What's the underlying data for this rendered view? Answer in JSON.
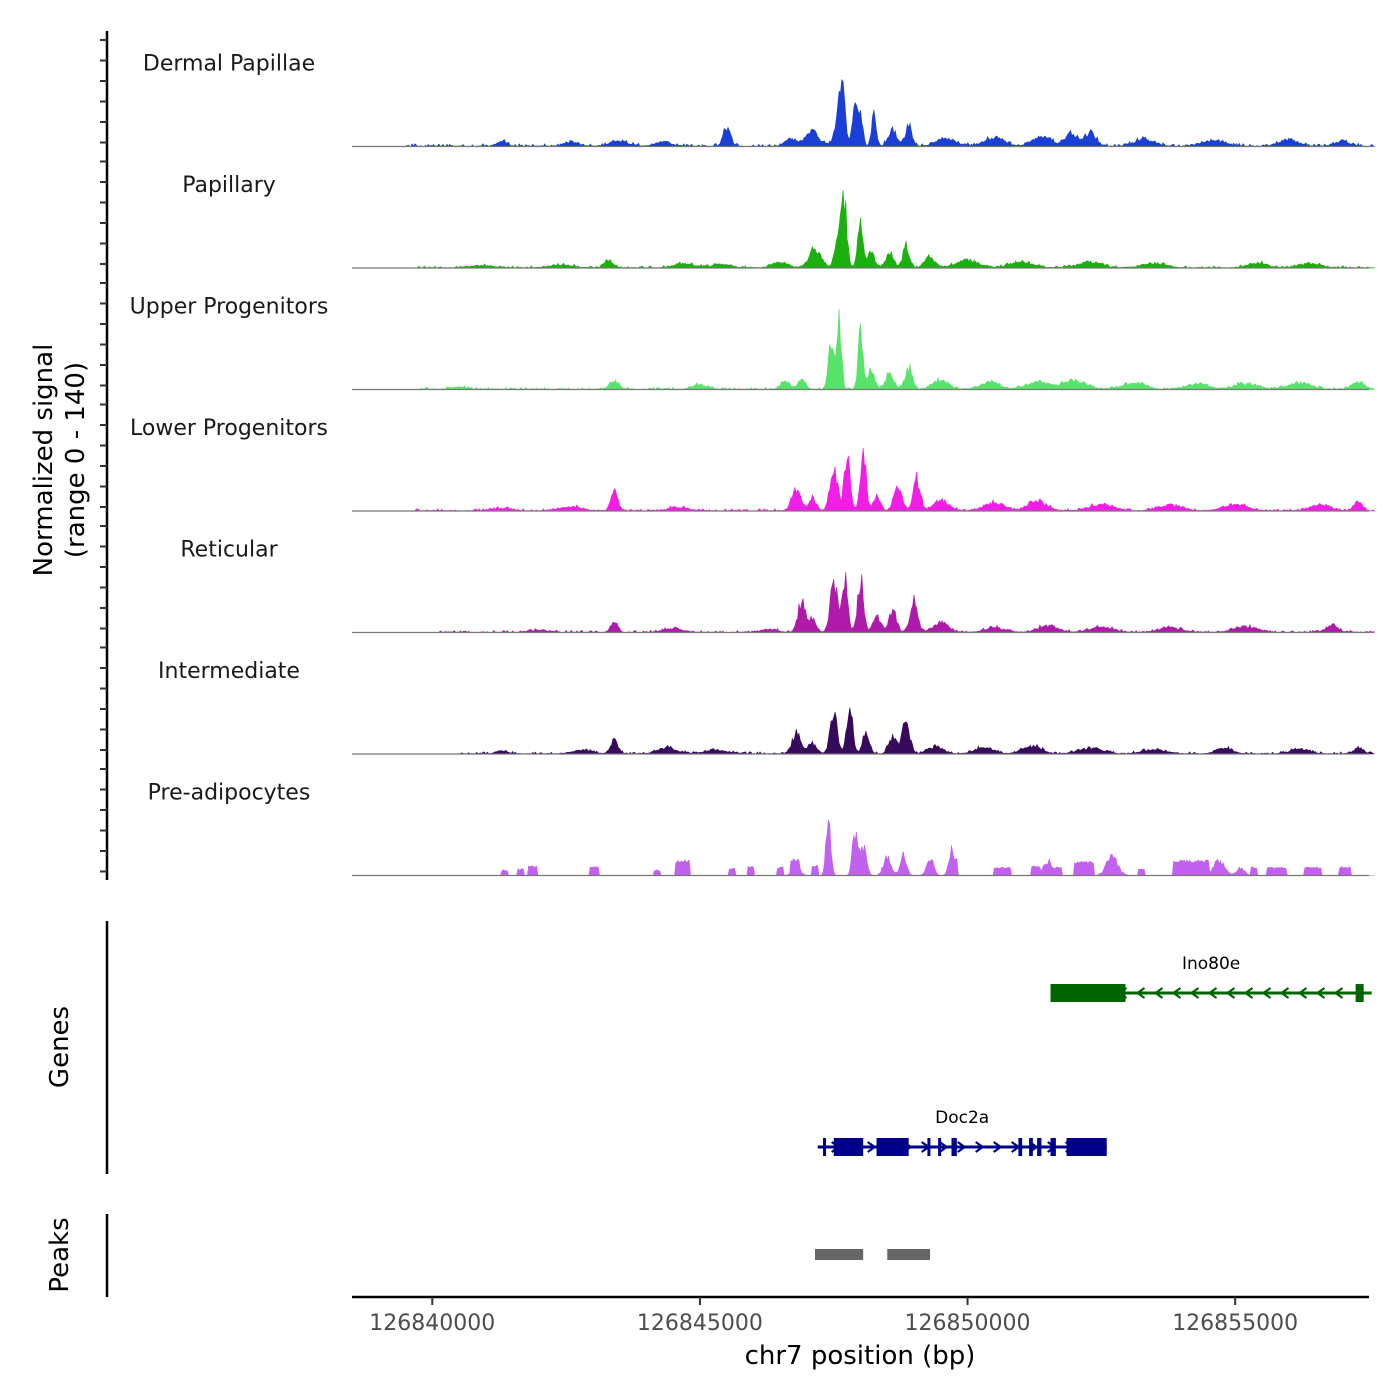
{
  "chart_data": {
    "type": "area",
    "title": "",
    "xlabel": "chr7 position (bp)",
    "ylabel_line1": "Normalized signal",
    "ylabel_line2": "(range 0 - 140)",
    "y_range": [
      0,
      140
    ],
    "xlim": [
      126838500,
      126857500
    ],
    "data_start": 126838500,
    "data_end": 126857600,
    "x_ticks": [
      126840000,
      126845000,
      126850000,
      126855000
    ],
    "x_tick_labels": [
      "126840000",
      "126845000",
      "126850000",
      "126855000"
    ],
    "tracks": [
      {
        "name": "Dermal Papillae",
        "color": "#1a3fd6",
        "baseline": 4,
        "noise_start": 126839500,
        "peaks": [
          [
            126841300,
            6,
            120
          ],
          [
            126842600,
            5,
            200
          ],
          [
            126843500,
            7,
            250
          ],
          [
            126844300,
            6,
            200
          ],
          [
            126845500,
            28,
            90
          ],
          [
            126846700,
            10,
            150
          ],
          [
            126847100,
            20,
            180
          ],
          [
            126847600,
            40,
            110
          ],
          [
            126847650,
            65,
            80
          ],
          [
            126847900,
            48,
            70
          ],
          [
            126848000,
            40,
            60
          ],
          [
            126848250,
            42,
            60
          ],
          [
            126848600,
            22,
            110
          ],
          [
            126848900,
            28,
            90
          ],
          [
            126849600,
            10,
            250
          ],
          [
            126850500,
            12,
            250
          ],
          [
            126851400,
            13,
            250
          ],
          [
            126851950,
            18,
            160
          ],
          [
            126852300,
            20,
            140
          ],
          [
            126853300,
            10,
            250
          ],
          [
            126854600,
            8,
            300
          ],
          [
            126856000,
            9,
            250
          ],
          [
            126857000,
            6,
            200
          ]
        ]
      },
      {
        "name": "Papillary",
        "color": "#1ab00d",
        "baseline": 3,
        "noise_start": 126839700,
        "peaks": [
          [
            126840900,
            3,
            300
          ],
          [
            126842400,
            4,
            300
          ],
          [
            126843300,
            10,
            110
          ],
          [
            126844700,
            6,
            250
          ],
          [
            126845400,
            5,
            250
          ],
          [
            126846500,
            8,
            200
          ],
          [
            126847150,
            25,
            160
          ],
          [
            126847600,
            55,
            90
          ],
          [
            126847700,
            78,
            70
          ],
          [
            126848000,
            60,
            70
          ],
          [
            126848200,
            22,
            90
          ],
          [
            126848550,
            20,
            100
          ],
          [
            126848850,
            32,
            80
          ],
          [
            126849300,
            15,
            130
          ],
          [
            126850000,
            10,
            300
          ],
          [
            126851000,
            8,
            300
          ],
          [
            126852300,
            8,
            300
          ],
          [
            126853500,
            6,
            300
          ],
          [
            126855400,
            7,
            250
          ],
          [
            126856400,
            5,
            300
          ]
        ]
      },
      {
        "name": "Upper Progenitors",
        "color": "#58e36a",
        "baseline": 3,
        "noise_start": 126839700,
        "peaks": [
          [
            126840500,
            3,
            200
          ],
          [
            126843400,
            11,
            120
          ],
          [
            126845000,
            6,
            200
          ],
          [
            126846600,
            10,
            120
          ],
          [
            126846900,
            12,
            100
          ],
          [
            126847450,
            70,
            70
          ],
          [
            126847600,
            100,
            60
          ],
          [
            126848000,
            85,
            60
          ],
          [
            126848200,
            25,
            90
          ],
          [
            126848550,
            25,
            100
          ],
          [
            126848900,
            30,
            90
          ],
          [
            126849500,
            12,
            200
          ],
          [
            126850400,
            10,
            250
          ],
          [
            126851300,
            10,
            300
          ],
          [
            126852000,
            12,
            300
          ],
          [
            126853100,
            8,
            300
          ],
          [
            126854300,
            7,
            300
          ],
          [
            126855200,
            8,
            300
          ],
          [
            126856200,
            8,
            300
          ],
          [
            126857300,
            9,
            160
          ]
        ]
      },
      {
        "name": "Lower Progenitors",
        "color": "#f21ee6",
        "baseline": 3,
        "noise_start": 126839700,
        "peaks": [
          [
            126841300,
            3,
            250
          ],
          [
            126842600,
            5,
            300
          ],
          [
            126843400,
            25,
            90
          ],
          [
            126844600,
            5,
            250
          ],
          [
            126846800,
            30,
            110
          ],
          [
            126847100,
            18,
            100
          ],
          [
            126847500,
            62,
            100
          ],
          [
            126847750,
            70,
            80
          ],
          [
            126848050,
            90,
            70
          ],
          [
            126848300,
            18,
            90
          ],
          [
            126848700,
            30,
            110
          ],
          [
            126849050,
            45,
            90
          ],
          [
            126849500,
            15,
            200
          ],
          [
            126850500,
            12,
            250
          ],
          [
            126851300,
            13,
            250
          ],
          [
            126852500,
            9,
            300
          ],
          [
            126853800,
            8,
            300
          ],
          [
            126855000,
            9,
            300
          ],
          [
            126856600,
            8,
            250
          ],
          [
            126857300,
            12,
            110
          ]
        ]
      },
      {
        "name": "Reticular",
        "color": "#b01aaa",
        "baseline": 3,
        "noise_start": 126840000,
        "peaks": [
          [
            126842000,
            3,
            250
          ],
          [
            126843400,
            17,
            90
          ],
          [
            126844500,
            5,
            250
          ],
          [
            126846300,
            4,
            200
          ],
          [
            126846900,
            42,
            100
          ],
          [
            126847100,
            18,
            100
          ],
          [
            126847500,
            70,
            90
          ],
          [
            126847700,
            75,
            80
          ],
          [
            126848000,
            72,
            80
          ],
          [
            126848300,
            22,
            100
          ],
          [
            126848600,
            28,
            100
          ],
          [
            126849000,
            42,
            100
          ],
          [
            126849500,
            12,
            200
          ],
          [
            126850500,
            6,
            250
          ],
          [
            126851500,
            9,
            250
          ],
          [
            126852500,
            7,
            300
          ],
          [
            126853800,
            6,
            300
          ],
          [
            126855200,
            8,
            300
          ],
          [
            126856800,
            10,
            150
          ]
        ]
      },
      {
        "name": "Intermediate",
        "color": "#370a5c",
        "baseline": 3,
        "noise_start": 126840500,
        "peaks": [
          [
            126841300,
            4,
            150
          ],
          [
            126842800,
            5,
            250
          ],
          [
            126843400,
            17,
            100
          ],
          [
            126844400,
            8,
            250
          ],
          [
            126845300,
            5,
            300
          ],
          [
            126846800,
            28,
            110
          ],
          [
            126847100,
            14,
            100
          ],
          [
            126847500,
            50,
            100
          ],
          [
            126847800,
            60,
            80
          ],
          [
            126848100,
            28,
            90
          ],
          [
            126848600,
            25,
            100
          ],
          [
            126848850,
            45,
            100
          ],
          [
            126849400,
            10,
            200
          ],
          [
            126850300,
            8,
            250
          ],
          [
            126851200,
            10,
            250
          ],
          [
            126852300,
            8,
            300
          ],
          [
            126853500,
            6,
            300
          ],
          [
            126854800,
            8,
            200
          ],
          [
            126856200,
            6,
            250
          ],
          [
            126857300,
            8,
            120
          ]
        ]
      },
      {
        "name": "Pre-adipocytes",
        "color": "#c261f0",
        "baseline": 0,
        "noise_start": 126840800,
        "blocks": [
          [
            126841300,
            126841400,
            8
          ],
          [
            126841600,
            126841700,
            10
          ],
          [
            126841800,
            126841950,
            14
          ],
          [
            126842950,
            126843100,
            14
          ],
          [
            126844150,
            126844250,
            8
          ],
          [
            126844550,
            126844800,
            22
          ],
          [
            126845550,
            126845650,
            10
          ],
          [
            126845900,
            126846000,
            14
          ],
          [
            126846450,
            126846550,
            12
          ],
          [
            126846700,
            126846850,
            24
          ],
          [
            126847100,
            126847200,
            14
          ],
          [
            126849700,
            126849800,
            24
          ],
          [
            126850500,
            126850800,
            12
          ],
          [
            126851200,
            126851350,
            14
          ],
          [
            126851500,
            126851750,
            12
          ],
          [
            126852000,
            126852350,
            20
          ],
          [
            126852600,
            126852750,
            14
          ],
          [
            126853200,
            126853300,
            10
          ],
          [
            126853850,
            126854500,
            22
          ],
          [
            126855300,
            126855400,
            12
          ],
          [
            126855600,
            126855950,
            12
          ],
          [
            126856300,
            126856600,
            12
          ],
          [
            126856950,
            126857150,
            12
          ]
        ],
        "peaks": [
          [
            126846800,
            14,
            100
          ],
          [
            126847400,
            75,
            60
          ],
          [
            126847900,
            60,
            70
          ],
          [
            126848050,
            40,
            80
          ],
          [
            126848500,
            25,
            100
          ],
          [
            126848800,
            28,
            80
          ],
          [
            126849300,
            25,
            90
          ],
          [
            126849700,
            35,
            70
          ],
          [
            126851500,
            20,
            120
          ],
          [
            126852700,
            25,
            150
          ],
          [
            126854700,
            20,
            150
          ],
          [
            126855100,
            10,
            100
          ]
        ]
      }
    ],
    "genes_label": "Genes",
    "genes": [
      {
        "name": "Ino80e",
        "strand": "-",
        "color": "#006400",
        "start": 126851550,
        "end": 126857550,
        "utr": [
          [
            126851550,
            126852950
          ],
          [
            126857250,
            126857400
          ]
        ],
        "exons": [
          [
            126852600,
            126852900
          ],
          [
            126857300,
            126857380
          ]
        ]
      },
      {
        "name": "Doc2a",
        "strand": "+",
        "color": "#00008b",
        "start": 126847200,
        "end": 126852600,
        "utr": [
          [
            126847500,
            126848050
          ],
          [
            126848300,
            126848900
          ],
          [
            126851850,
            126852600
          ]
        ],
        "exons": [
          [
            126847300,
            126847350
          ],
          [
            126849250,
            126849300
          ],
          [
            126849450,
            126849500
          ],
          [
            126849700,
            126849800
          ],
          [
            126850950,
            126851020
          ],
          [
            126851150,
            126851220
          ],
          [
            126851300,
            126851380
          ],
          [
            126851550,
            126851650
          ]
        ]
      }
    ],
    "peaks_label": "Peaks",
    "peak_regions": [
      [
        126847150,
        126848050
      ],
      [
        126848500,
        126849300
      ]
    ]
  }
}
